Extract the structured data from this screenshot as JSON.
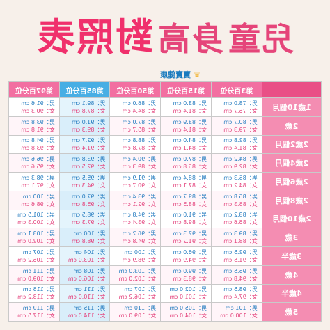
{
  "title": {
    "part1": "兒童",
    "part2": "身高",
    "part3": "對照表",
    "big_char": "高"
  },
  "badge": {
    "label": "寶寶健康",
    "icon": "crown-icon"
  },
  "columns": [
    "",
    "第3百分位",
    "第15百分位",
    "第50百分位",
    "第85百分位",
    "第97百分位"
  ],
  "rows": [
    {
      "age": "1歲10個月",
      "values": [
        [
          "男：78.0 cm",
          "女：76.7 cm"
        ],
        [
          "男：83.0 cm",
          "女：81.4 cm"
        ],
        [
          "男：86.0 cm",
          "女：84.4 cm"
        ],
        [
          "男：89.1 cm",
          "女：87.8 cm"
        ],
        [
          "男：91.6 cm",
          "女：90.3 cm"
        ]
      ]
    },
    {
      "age": "2歲",
      "values": [
        [
          "男：80.7 cm",
          "女：79.3 cm"
        ],
        [
          "男：83.9 cm",
          "女：81.4 cm"
        ],
        [
          "男：87.0 cm",
          "女：85.7 cm"
        ],
        [
          "男：91.0 cm",
          "女：89.3 cm"
        ],
        [
          "男：93.8 cm",
          "女：91.8 cm"
        ]
      ]
    },
    {
      "age": "2歲2個月",
      "values": [
        [
          "男：82.8 cm",
          "女：81.4 cm"
        ],
        [
          "男：84.0 cm",
          "女：84.1 cm"
        ],
        [
          "男：88.8 cm",
          "女：87.8 cm"
        ],
        [
          "男：92.7 cm",
          "女：91.4 cm"
        ],
        [
          "男：94.8 cm",
          "女：93.8 cm"
        ]
      ]
    },
    {
      "age": "2歲4個月",
      "values": [
        [
          "男：84.2 cm",
          "女：82.9 cm"
        ],
        [
          "男：87.0 cm",
          "女：85.8 cm"
        ],
        [
          "男：90.4 cm",
          "女：89.3 cm"
        ],
        [
          "男：93.8 cm",
          "女：92.5 cm"
        ],
        [
          "男：96.6 cm",
          "女：95.6 cm"
        ]
      ]
    },
    {
      "age": "2歲6個月",
      "values": [
        [
          "男：85.3 cm",
          "女：84.2 cm"
        ],
        [
          "男：88.4 cm",
          "女：87.1 cm"
        ],
        [
          "男：91.9 cm",
          "女：90.7 cm"
        ],
        [
          "男：95.5 cm",
          "女：94.3 cm"
        ],
        [
          "男：98.3 cm",
          "女：97.1 cm"
        ]
      ]
    },
    {
      "age": "2歲8個月",
      "values": [
        [
          "男：86.8 cm",
          "女：85.3 cm"
        ],
        [
          "男：89.7 cm",
          "女：88.5 cm"
        ],
        [
          "男：93.4 cm",
          "女：92.1 cm"
        ],
        [
          "男：97.0 cm",
          "女：95.8 cm"
        ],
        [
          "男：100 cm",
          "女：98.6 cm"
        ]
      ]
    },
    {
      "age": "2歲10個月",
      "values": [
        [
          "男：88.2 cm",
          "女：86.6 cm"
        ],
        [
          "男：91.0 cm",
          "女：89.8 cm"
        ],
        [
          "男：94.8 cm",
          "女：93.4 cm"
        ],
        [
          "男：98.5 cm",
          "女：97.3 cm"
        ],
        [
          "男：101.5 cm",
          "女：100.3 cm"
        ]
      ]
    },
    {
      "age": "3歲",
      "values": [
        [
          "男：89.3 cm",
          "女：88.1 cm"
        ],
        [
          "男：92.3 cm",
          "女：91.2 cm"
        ],
        [
          "男：96.2 cm",
          "女：94.8 cm"
        ],
        [
          "男：100 cm",
          "女：98.8 cm"
        ],
        [
          "男：103.1 cm",
          "女：102.0 cm"
        ]
      ]
    },
    {
      "age": "3歲半",
      "values": [
        [
          "男：92.5 cm",
          "女：91.5 cm"
        ],
        [
          "男：96.0 cm",
          "女：94.9 cm"
        ],
        [
          "男：100 cm",
          "女：98.9 cm"
        ],
        [
          "男：104 cm",
          "女：103.0 cm"
        ],
        [
          "男：107 cm",
          "女：106.2 cm"
        ]
      ]
    },
    {
      "age": "4歲",
      "values": [
        [
          "男：95.5 cm",
          "女：94.8 cm"
        ],
        [
          "男：99.0 cm",
          "女：98.3 cm"
        ],
        [
          "男：103.0 cm",
          "女：102.0 cm"
        ],
        [
          "男：108 cm",
          "女：106.0 cm"
        ],
        [
          "男：111 cm",
          "女：109.0 cm"
        ]
      ]
    },
    {
      "age": "4歲半",
      "values": [
        [
          "男：98.5 cm",
          "女：97.4 cm"
        ],
        [
          "男：102.0 cm",
          "女：101.0 cm"
        ],
        [
          "男：107 cm",
          "女：106.2 cm"
        ],
        [
          "男：111 cm",
          "女：110.0 cm"
        ],
        [
          "男：115 cm",
          "女：113.2 cm"
        ]
      ]
    },
    {
      "age": "5歲",
      "values": [
        [
          "男：101 cm",
          "女：100.0 cm"
        ],
        [
          "男：105.0 cm",
          "女：104.0 cm"
        ],
        [
          "男：110 cm",
          "女：109.0 cm"
        ],
        [
          "男：115 cm",
          "女：114.0 cm"
        ],
        [
          "男：119 cm",
          "女：117.5 cm"
        ]
      ]
    }
  ]
}
